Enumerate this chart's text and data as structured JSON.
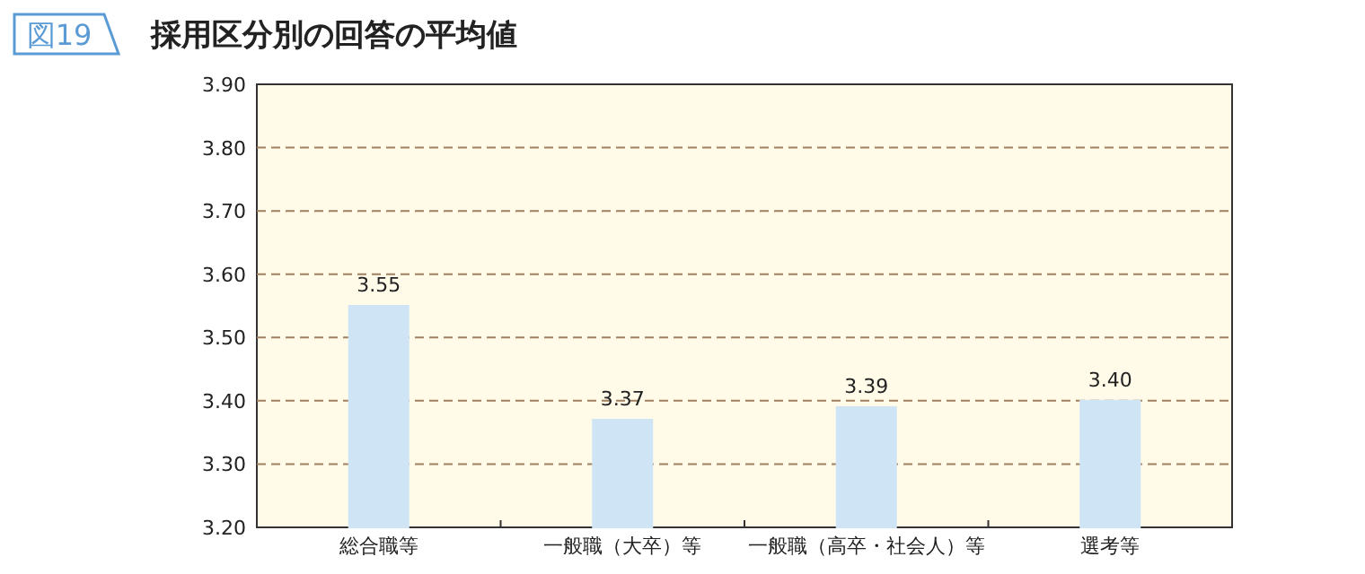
{
  "chart_data": {
    "type": "bar",
    "title": "採用区分別の回答の平均値",
    "annotations": [
      "図19"
    ],
    "categories": [
      "総合職等",
      "一般職（大卒）等",
      "一般職（高卒・社会人）等",
      "選考等"
    ],
    "values": [
      3.55,
      3.37,
      3.39,
      3.4
    ],
    "color": "#cfe5f6",
    "ylim": [
      3.2,
      3.9
    ],
    "yticks": [
      {
        "value": 3.2,
        "label": "3.20"
      },
      {
        "value": 3.3,
        "label": "3.30"
      },
      {
        "value": 3.4,
        "label": "3.40"
      },
      {
        "value": 3.5,
        "label": "3.50"
      },
      {
        "value": 3.6,
        "label": "3.60"
      },
      {
        "value": 3.7,
        "label": "3.70"
      },
      {
        "value": 3.8,
        "label": "3.80"
      },
      {
        "value": 3.9,
        "label": "3.90"
      }
    ],
    "grid": "y",
    "value_labels": [
      "3.55",
      "3.37",
      "3.39",
      "3.40"
    ]
  }
}
